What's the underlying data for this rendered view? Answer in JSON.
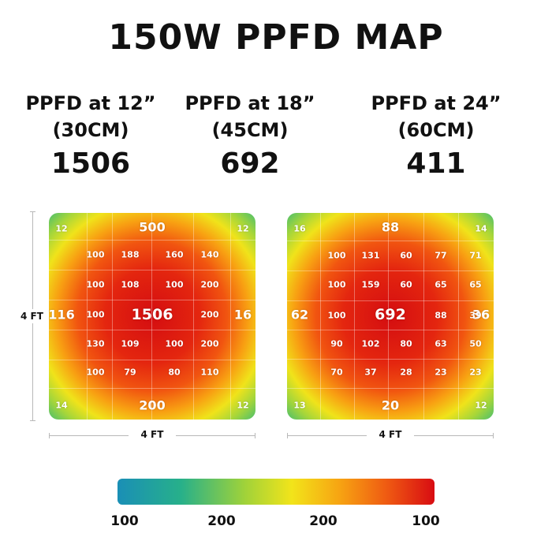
{
  "title": "150W PPFD MAP",
  "headers": [
    {
      "line1": "PPFD at 12”",
      "line2": "(30CM)",
      "value": "1506"
    },
    {
      "line1": "PPFD at 18”",
      "line2": "(45CM)",
      "value": "692"
    },
    {
      "line1": "PPFD at 24”",
      "line2": "(60CM)",
      "value": "411"
    }
  ],
  "colors": {
    "low": "#1a8fb6",
    "mid_low": "#9fd23a",
    "mid": "#f2e41a",
    "mid_high": "#f7a412",
    "high": "#d80c12"
  },
  "chart_data": [
    {
      "type": "heatmap",
      "corners": [
        "12",
        "12",
        "14",
        "12"
      ],
      "top_edge": "500",
      "bottom_edge": "200",
      "left_edge": "116",
      "right_edge": "16",
      "center": "1506",
      "grid": [
        [
          "100",
          "188",
          "160",
          "140"
        ],
        [
          "100",
          "108",
          "100",
          "200"
        ],
        [
          "100",
          "",
          "",
          "200"
        ],
        [
          "130",
          "109",
          "100",
          "200"
        ],
        [
          "100",
          "79",
          "80",
          "110"
        ]
      ],
      "xlabel": "4 FT",
      "ylabel": "4 FT"
    },
    {
      "type": "heatmap",
      "corners": [
        "16",
        "14",
        "13",
        "12"
      ],
      "top_edge": "88",
      "bottom_edge": "20",
      "left_edge": "62",
      "right_edge": "36",
      "center": "692",
      "grid": [
        [
          "100",
          "131",
          "60",
          "77",
          "71"
        ],
        [
          "100",
          "159",
          "60",
          "65",
          "65"
        ],
        [
          "100",
          "",
          "",
          "88",
          "39"
        ],
        [
          "90",
          "102",
          "80",
          "63",
          "50"
        ],
        [
          "70",
          "37",
          "28",
          "23",
          "23"
        ]
      ],
      "xlabel": "4 FT"
    }
  ],
  "colorbar": {
    "ticks": [
      "100",
      "200",
      "200",
      "100"
    ]
  }
}
